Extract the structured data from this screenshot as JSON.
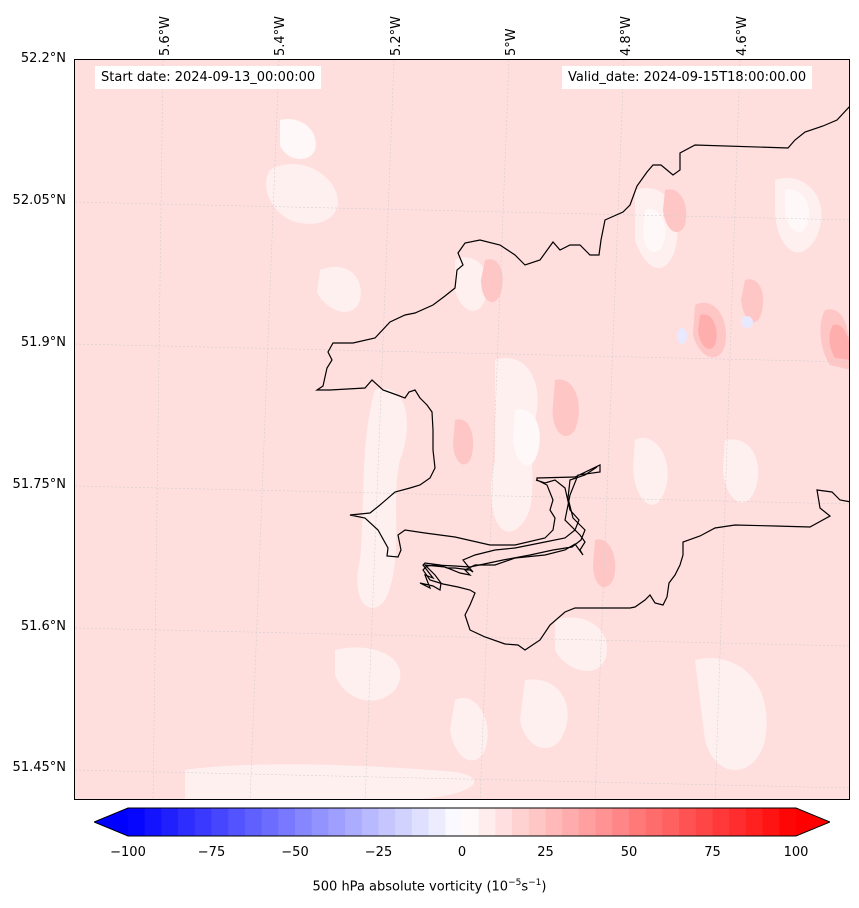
{
  "header": {
    "start_date": "Start date: 2024-09-13_00:00:00",
    "valid_date": "Valid_date: 2024-09-15T18:00:00.00"
  },
  "map": {
    "lon_labels": [
      "5.6°W",
      "5.4°W",
      "5.2°W",
      "5°W",
      "4.8°W",
      "4.6°W"
    ],
    "lat_labels": [
      "52.2°N",
      "52.05°N",
      "51.9°N",
      "51.75°N",
      "51.6°N",
      "51.45°N"
    ],
    "field": "500 hPa absolute vorticity",
    "background_color": "#ffdede"
  },
  "colorbar": {
    "tick_labels": [
      "−100",
      "−75",
      "−50",
      "−25",
      "0",
      "25",
      "50",
      "75",
      "100"
    ],
    "label_text": "500 hPa absolute vorticity (10",
    "label_exp1": "−5",
    "label_mid": "s",
    "label_exp2": "−1",
    "label_end": ")",
    "range": [
      -100,
      100
    ],
    "colormap": "bwr",
    "extend": "both"
  }
}
